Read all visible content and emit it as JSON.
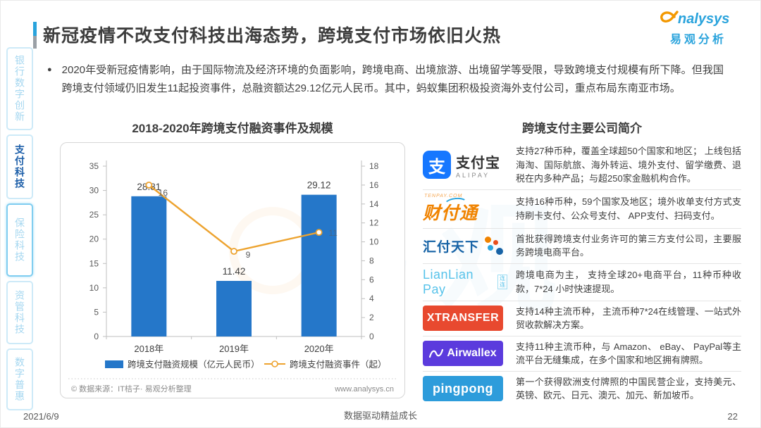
{
  "page": {
    "title": "新冠疫情不改支付科技出海态势，跨境支付市场依旧火热"
  },
  "logo": {
    "brand_en": "analysys",
    "brand_cn": "易观分析"
  },
  "sidebar": {
    "items": [
      {
        "label": "银行数字创新",
        "active": false
      },
      {
        "label": "支付科技",
        "active": true
      },
      {
        "label": "保险科技",
        "active": false
      },
      {
        "label": "资管科技",
        "active": false
      },
      {
        "label": "数字普惠",
        "active": false
      }
    ]
  },
  "summary": {
    "bullet": "2020年受新冠疫情影响，由于国际物流及经济环境的负面影响，跨境电商、出境旅游、出境留学等受限，导致跨境支付规模有所下降。但我国跨境支付领域仍旧发生11起投资事件，总融资额达29.12亿元人民币。其中，蚂蚁集团积极投资海外支付公司，重点布局东南亚市场。"
  },
  "chart": {
    "title": "2018-2020年跨境支付融资事件及规模",
    "source": "© 数据来源：IT桔子· 易观分析整理",
    "website": "www.analysys.cn",
    "chart_data": {
      "type": "bar+line",
      "categories": [
        "2018年",
        "2019年",
        "2020年"
      ],
      "series": [
        {
          "name": "跨境支付融资规模（亿元人民币）",
          "type": "bar",
          "axis": "left",
          "color": "#2577c9",
          "values": [
            28.81,
            11.42,
            29.12
          ]
        },
        {
          "name": "跨境支付融资事件（起）",
          "type": "line",
          "axis": "right",
          "color": "#eda32f",
          "values": [
            16,
            9,
            11
          ]
        }
      ],
      "left_axis": {
        "min": 0,
        "max": 35,
        "step": 5
      },
      "right_axis": {
        "min": 0,
        "max": 18,
        "step": 2
      },
      "grid": false,
      "legend_position": "bottom"
    }
  },
  "companies": {
    "title": "跨境支付主要公司简介",
    "rows": [
      {
        "name": "支付宝",
        "logo_zh": "支付宝",
        "logo_en": "ALIPAY",
        "logo_glyph": "支",
        "brand_color": "#1677ff",
        "desc": "支持27种币种，覆盖全球超50个国家和地区； 上线包括海淘、国际航旅、海外转运、境外支付、留学缴费、退税在内多种产品；与超250家金融机构合作。"
      },
      {
        "name": "财付通",
        "logo_text": "财付通",
        "logo_sub": "TENPAY.COM",
        "brand_color": "#f08300",
        "desc": "支持16种币种，59个国家及地区；境外收单支付方式支持刷卡支付、公众号支付、 APP支付、扫码支付。"
      },
      {
        "name": "汇付天下",
        "logo_text": "汇付天下",
        "brand_color": "#1763a6",
        "desc": "首批获得跨境支付业务许可的第三方支付公司，主要服务跨境电商平台。"
      },
      {
        "name": "LianLian Pay",
        "logo_text": "LianLian Pay",
        "logo_badge": "连连",
        "brand_color": "#56c2ea",
        "desc": "跨境电商为主， 支持全球20+电商平台，11种币种收款，7*24 小时快速提现。"
      },
      {
        "name": "XTRANSFER",
        "logo_text": "XTRANSFER",
        "brand_color": "#e8492f",
        "desc": "支持14种主流币种， 主流币种7*24在线管理、一站式外贸收款解决方案。"
      },
      {
        "name": "Airwallex",
        "logo_text": "Airwallex",
        "brand_color": "#5b3bdd",
        "desc": "支持11种主流币种，与 Amazon、 eBay、 PayPal等主流平台无缝集成，在多个国家和地区拥有牌照。"
      },
      {
        "name": "pingpong",
        "logo_text": "pingpong",
        "brand_color": "#2d9cdb",
        "desc": "第一个获得欧洲支付牌照的中国民营企业，支持美元、英镑、欧元、日元、澳元、加元、新加坡币。"
      }
    ]
  },
  "watermark": {
    "text": "易观"
  },
  "footer": {
    "date": "2021/6/9",
    "slogan": "数据驱动精益成长",
    "page": "22"
  }
}
